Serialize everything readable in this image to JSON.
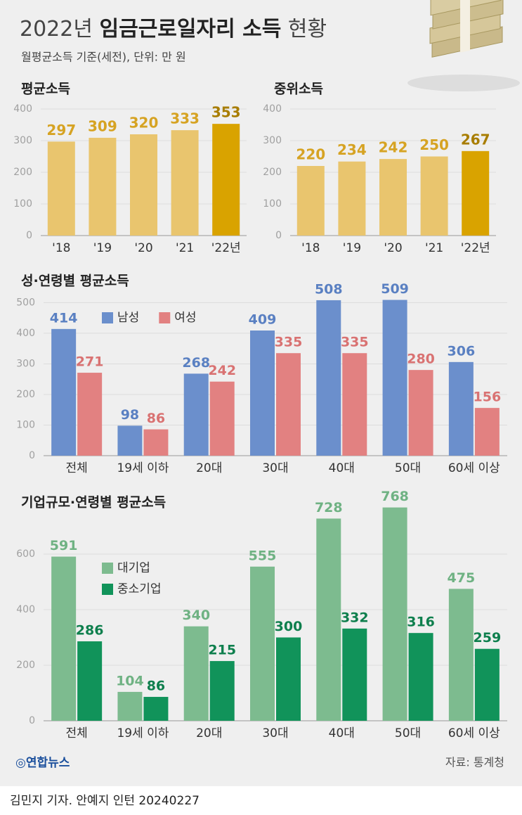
{
  "header": {
    "title": [
      "2022년",
      "임금근로일자리 소득",
      "현황"
    ],
    "subtitle": "월평균소득 기준(세전), 단위: 만 원"
  },
  "chart_data": [
    {
      "type": "bar",
      "title": "평균소득",
      "categories": [
        "'18",
        "'19",
        "'20",
        "'21",
        "'22년"
      ],
      "values": [
        297,
        309,
        320,
        333,
        353
      ],
      "colors": [
        "#e9c56e",
        "#e9c56e",
        "#e9c56e",
        "#e9c56e",
        "#d9a300"
      ],
      "label_colors": [
        "#d6a323",
        "#d6a323",
        "#d6a323",
        "#d6a323",
        "#a87d00"
      ],
      "ylim": [
        0,
        400
      ],
      "yticks": [
        0,
        100,
        200,
        300,
        400
      ],
      "grid": true
    },
    {
      "type": "bar",
      "title": "중위소득",
      "categories": [
        "'18",
        "'19",
        "'20",
        "'21",
        "'22년"
      ],
      "values": [
        220,
        234,
        242,
        250,
        267
      ],
      "colors": [
        "#e9c56e",
        "#e9c56e",
        "#e9c56e",
        "#e9c56e",
        "#d9a300"
      ],
      "label_colors": [
        "#d6a323",
        "#d6a323",
        "#d6a323",
        "#d6a323",
        "#a87d00"
      ],
      "ylim": [
        0,
        400
      ],
      "yticks": [
        0,
        100,
        200,
        300,
        400
      ],
      "grid": true
    },
    {
      "type": "bar",
      "title": "성·연령별 평균소득",
      "categories": [
        "전체",
        "19세 이하",
        "20대",
        "30대",
        "40대",
        "50대",
        "60세 이상"
      ],
      "series": [
        {
          "name": "남성",
          "color": "#6b8fcc",
          "label_color": "#5a80c2",
          "values": [
            414,
            98,
            268,
            409,
            508,
            509,
            306
          ]
        },
        {
          "name": "여성",
          "color": "#e28181",
          "label_color": "#d97272",
          "values": [
            271,
            86,
            242,
            335,
            335,
            280,
            156
          ]
        }
      ],
      "ylim": [
        0,
        540
      ],
      "yticks": [
        0,
        100,
        200,
        300,
        400,
        500
      ],
      "grid": true,
      "legend": "top-left"
    },
    {
      "type": "bar",
      "title": "기업규모·연령별 평균소득",
      "categories": [
        "전체",
        "19세 이하",
        "20대",
        "30대",
        "40대",
        "50대",
        "60세 이상"
      ],
      "series": [
        {
          "name": "대기업",
          "color": "#7dbb8f",
          "label_color": "#6fb283",
          "values": [
            591,
            104,
            340,
            555,
            728,
            768,
            475
          ]
        },
        {
          "name": "중소기업",
          "color": "#11935a",
          "label_color": "#0e7f4d",
          "values": [
            286,
            86,
            215,
            300,
            332,
            316,
            259
          ]
        }
      ],
      "ylim": [
        0,
        800
      ],
      "yticks": [
        0,
        200,
        400,
        600
      ],
      "grid": true,
      "legend": "top-left"
    }
  ],
  "footer": {
    "logo": "연합뉴스",
    "source": "자료: 통계청",
    "credit": "김민지 기자. 안예지 인턴  20240227"
  }
}
